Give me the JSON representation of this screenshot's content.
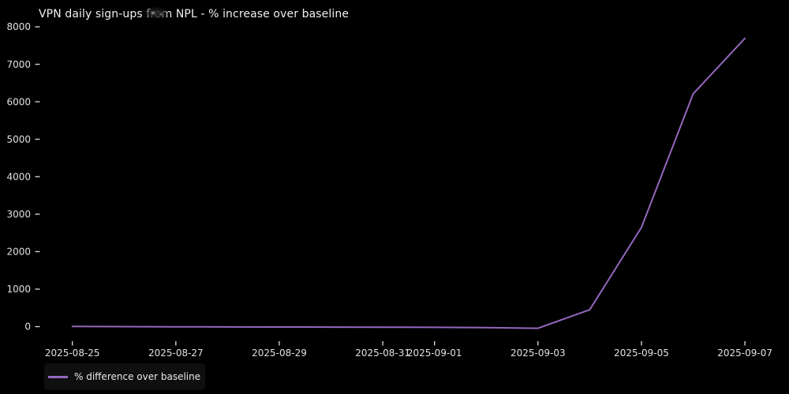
{
  "figure": {
    "title": "VPN daily sign-ups from NPL - % increase over baseline",
    "background_color": "#000000",
    "text_color": "#f0f0f0",
    "tick_color": "#e0e0e0"
  },
  "legend": {
    "label": "% difference over baseline",
    "swatch_color": "#9467bd",
    "position": "lower-left"
  },
  "artifacts": {
    "cursor_smudge": "blurred cursor smudge over the word 'from' in the title"
  },
  "chart_data": {
    "type": "line",
    "title": "VPN daily sign-ups from NPL - % increase over baseline",
    "x": [
      "2025-08-25",
      "2025-08-26",
      "2025-08-27",
      "2025-08-28",
      "2025-08-29",
      "2025-08-30",
      "2025-08-31",
      "2025-09-01",
      "2025-09-02",
      "2025-09-03",
      "2025-09-04",
      "2025-09-05",
      "2025-09-06",
      "2025-09-07"
    ],
    "series": [
      {
        "name": "% difference over baseline",
        "color": "#9467bd",
        "values": [
          5,
          0,
          -5,
          -8,
          -10,
          -12,
          -15,
          -18,
          -28,
          -45,
          450,
          2650,
          6210,
          7690
        ]
      }
    ],
    "x_tick_labels": [
      "2025-08-25",
      "2025-08-27",
      "2025-08-29",
      "2025-08-31",
      "2025-09-01",
      "2025-09-03",
      "2025-09-05",
      "2025-09-07"
    ],
    "y_ticks": [
      0,
      1000,
      2000,
      3000,
      4000,
      5000,
      6000,
      7000,
      8000
    ],
    "ylim": [
      -430,
      8075
    ],
    "xlabel": "",
    "ylabel": "",
    "grid": false,
    "legend_position": "lower left",
    "title_align": "left",
    "line_width": 2
  }
}
